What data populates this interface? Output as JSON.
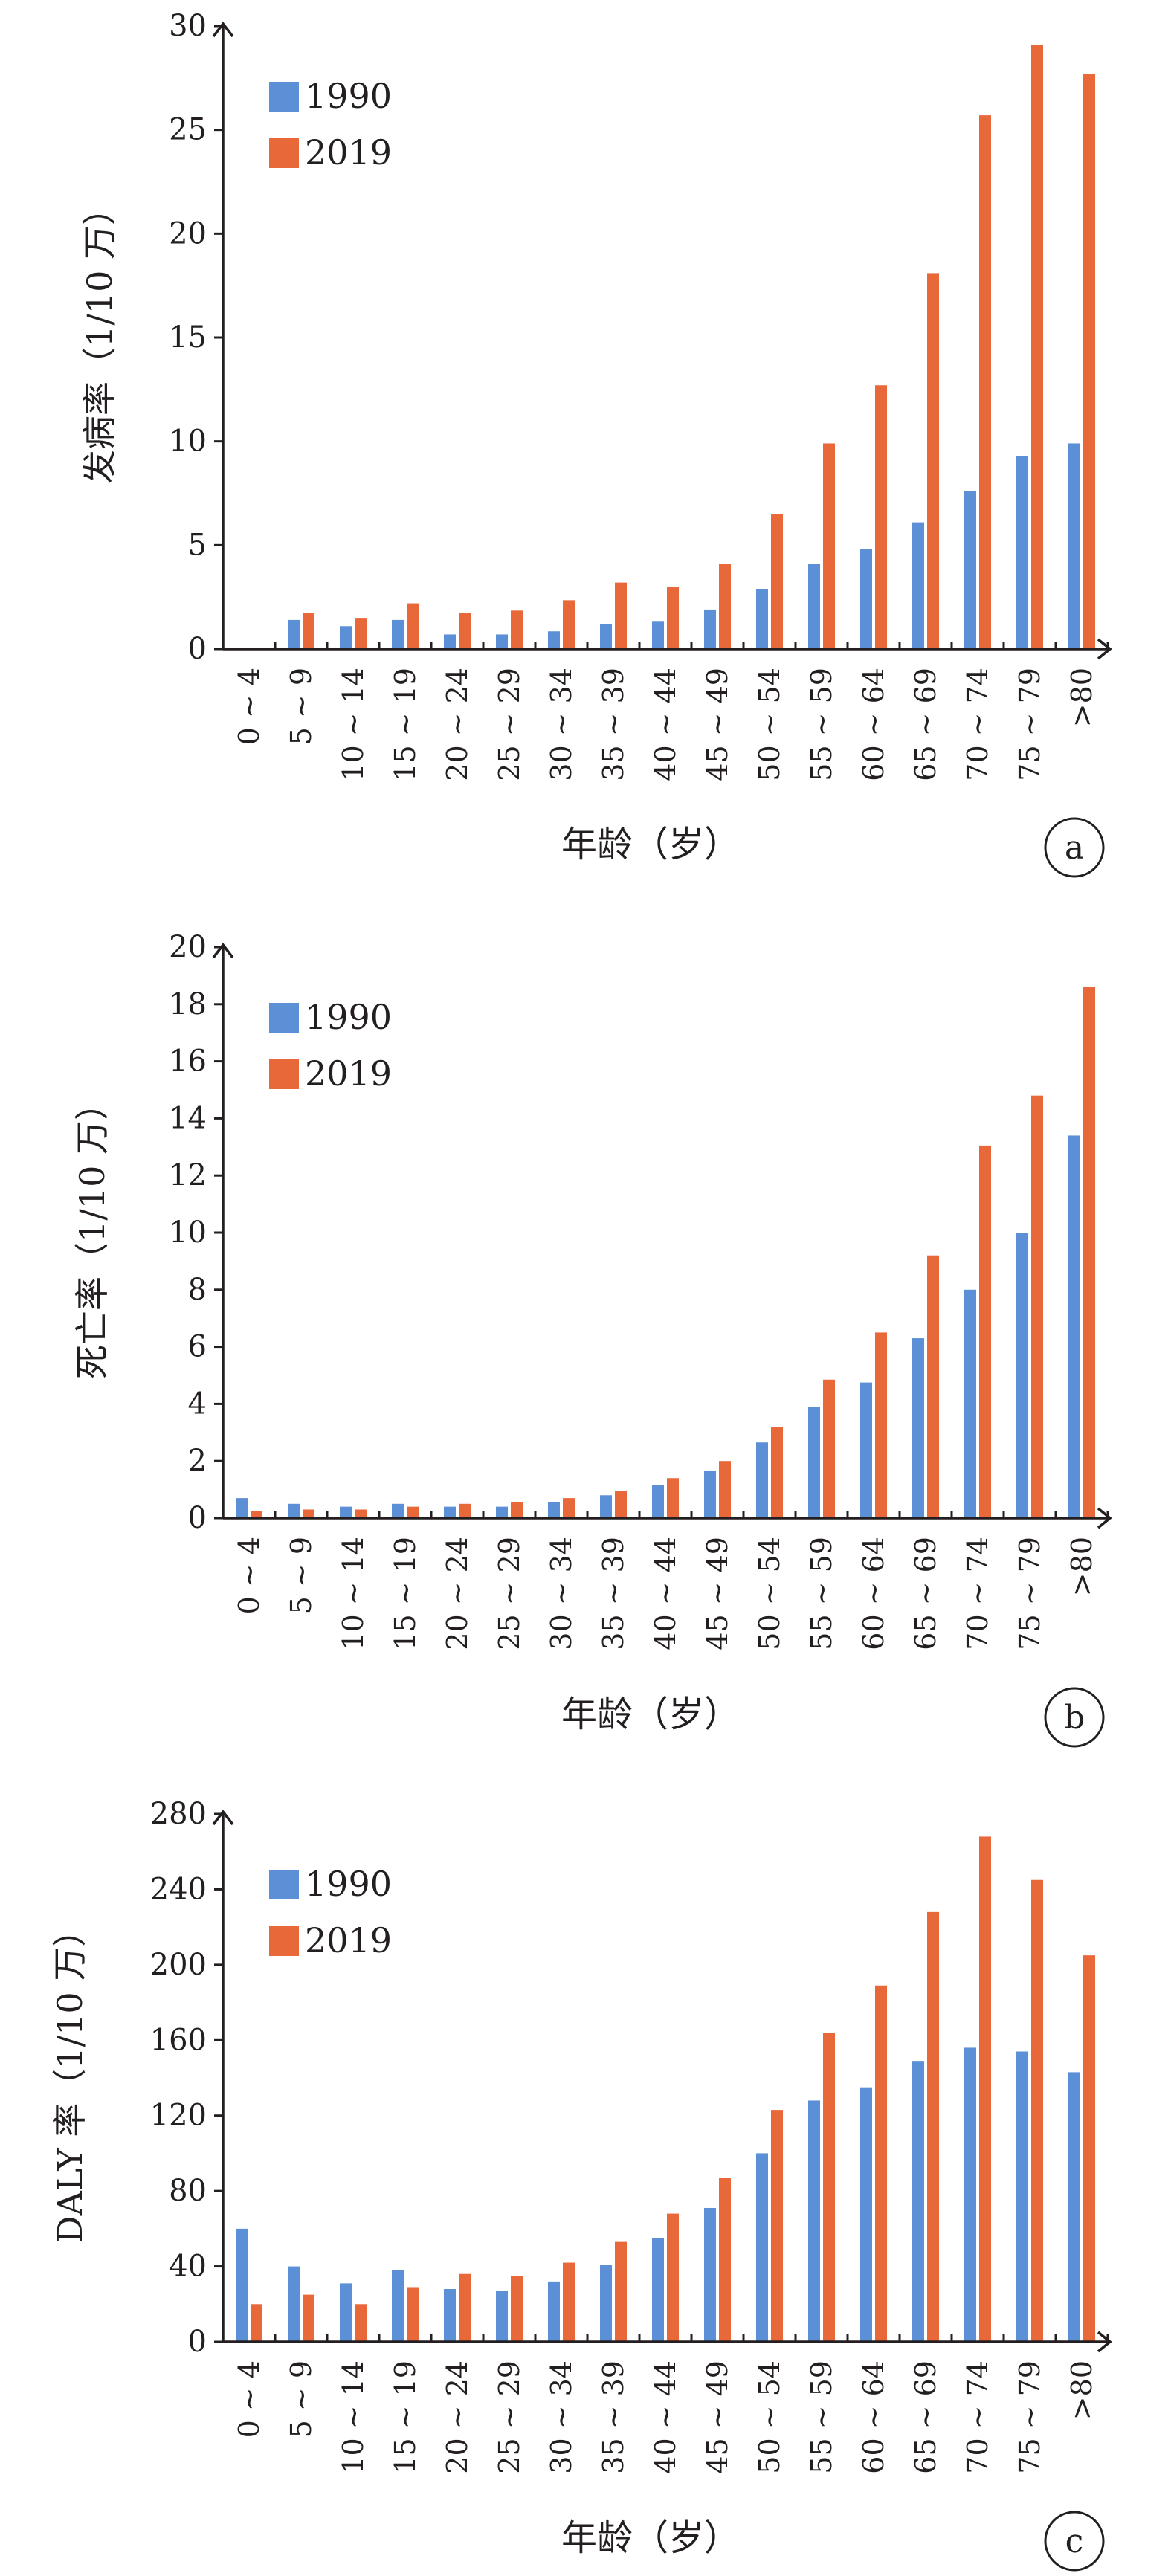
{
  "colors": {
    "s1990": "#5b8fd6",
    "s2019": "#e8683a",
    "axis": "#231f20"
  },
  "chart_data": [
    {
      "type": "bar",
      "panel_label": "a",
      "xlabel": "年龄（岁）",
      "ylabel": "发病率（1/10 万）",
      "ylim": [
        0,
        30
      ],
      "yticks": [
        "0",
        "5",
        "10",
        "15",
        "20",
        "25",
        "30"
      ],
      "legend_position": "top-left",
      "categories": [
        "0 ~ 4",
        "5 ~ 9",
        "10 ~ 14",
        "15 ~ 19",
        "20 ~ 24",
        "25 ~ 29",
        "30 ~ 34",
        "35 ~ 39",
        "40 ~ 44",
        "45 ~ 49",
        "50 ~ 54",
        "55 ~ 59",
        "60 ~ 64",
        "65 ~ 69",
        "70 ~ 74",
        "75 ~ 79",
        ">80"
      ],
      "series": [
        {
          "name": "1990",
          "values": [
            0.05,
            1.4,
            1.1,
            1.4,
            0.7,
            0.7,
            0.85,
            1.2,
            1.35,
            1.9,
            2.9,
            4.1,
            4.8,
            6.1,
            7.6,
            9.3,
            9.9
          ]
        },
        {
          "name": "2019",
          "values": [
            0.05,
            1.75,
            1.5,
            2.2,
            1.75,
            1.85,
            2.35,
            3.2,
            3.0,
            4.1,
            6.5,
            9.9,
            12.7,
            18.1,
            25.7,
            29.1,
            27.7
          ]
        }
      ]
    },
    {
      "type": "bar",
      "panel_label": "b",
      "xlabel": "年龄（岁）",
      "ylabel": "死亡率（1/10 万）",
      "ylim": [
        0,
        20
      ],
      "yticks": [
        "0",
        "2",
        "4",
        "6",
        "8",
        "10",
        "12",
        "14",
        "16",
        "18",
        "20"
      ],
      "legend_position": "top-left",
      "categories": [
        "0 ~ 4",
        "5 ~ 9",
        "10 ~ 14",
        "15 ~ 19",
        "20 ~ 24",
        "25 ~ 29",
        "30 ~ 34",
        "35 ~ 39",
        "40 ~ 44",
        "45 ~ 49",
        "50 ~ 54",
        "55 ~ 59",
        "60 ~ 64",
        "65 ~ 69",
        "70 ~ 74",
        "75 ~ 79",
        ">80"
      ],
      "series": [
        {
          "name": "1990",
          "values": [
            0.7,
            0.5,
            0.4,
            0.5,
            0.4,
            0.4,
            0.55,
            0.8,
            1.15,
            1.65,
            2.65,
            3.9,
            4.75,
            6.3,
            8.0,
            10.0,
            13.4
          ]
        },
        {
          "name": "2019",
          "values": [
            0.25,
            0.3,
            0.3,
            0.4,
            0.5,
            0.55,
            0.7,
            0.95,
            1.4,
            2.0,
            3.2,
            4.85,
            6.5,
            9.2,
            13.05,
            14.8,
            18.6
          ]
        }
      ]
    },
    {
      "type": "bar",
      "panel_label": "c",
      "xlabel": "年龄（岁）",
      "ylabel": "DALY 率（1/10 万）",
      "ylim": [
        0,
        280
      ],
      "yticks": [
        "0",
        "40",
        "80",
        "120",
        "160",
        "200",
        "240",
        "280"
      ],
      "legend_position": "top-left",
      "categories": [
        "0 ~ 4",
        "5 ~ 9",
        "10 ~ 14",
        "15 ~ 19",
        "20 ~ 24",
        "25 ~ 29",
        "30 ~ 34",
        "35 ~ 39",
        "40 ~ 44",
        "45 ~ 49",
        "50 ~ 54",
        "55 ~ 59",
        "60 ~ 64",
        "65 ~ 69",
        "70 ~ 74",
        "75 ~ 79",
        ">80"
      ],
      "series": [
        {
          "name": "1990",
          "values": [
            60,
            40,
            31,
            38,
            28,
            27,
            32,
            41,
            55,
            71,
            100,
            128,
            135,
            149,
            156,
            154,
            143
          ]
        },
        {
          "name": "2019",
          "values": [
            20,
            25,
            20,
            29,
            36,
            35,
            42,
            53,
            68,
            87,
            123,
            164,
            189,
            228,
            268,
            245,
            205
          ]
        }
      ]
    }
  ]
}
